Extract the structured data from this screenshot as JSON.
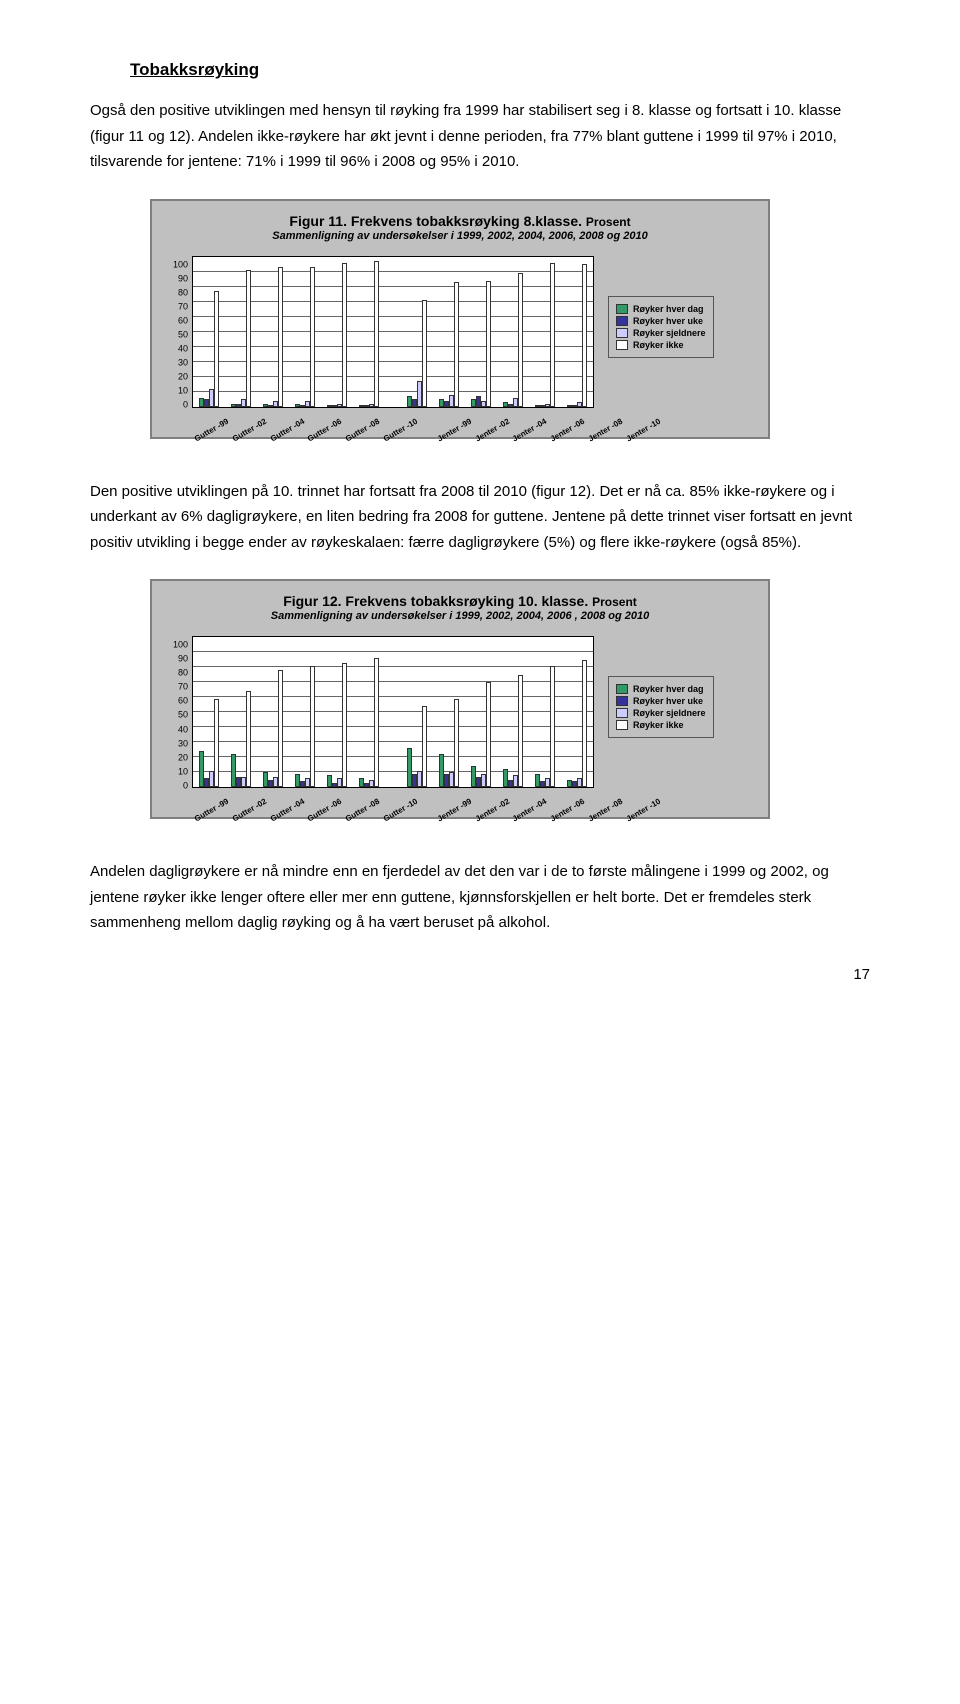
{
  "section_title": "Tobakksrøyking",
  "para1": "Også den positive utviklingen med hensyn til røyking fra 1999 har stabilisert seg i 8. klasse og fortsatt i 10. klasse (figur 11 og 12). Andelen ikke-røykere har økt jevnt i denne perioden, fra 77% blant guttene i 1999 til 97% i 2010, tilsvarende for jentene: 71% i 1999 til 96% i 2008 og 95% i 2010.",
  "para2": "Den positive utviklingen på 10. trinnet har fortsatt fra 2008 til 2010 (figur 12). Det er nå ca. 85% ikke-røykere og i underkant av 6% dagligrøykere, en liten bedring fra 2008 for guttene. Jentene på dette trinnet viser fortsatt en jevnt positiv utvikling i begge ender av røykeskalaen: færre dagligrøykere (5%) og flere ikke-røykere (også 85%).",
  "para3": "Andelen dagligrøykere er nå mindre enn en fjerdedel av det den var i de to første målingene i 1999 og 2002, og jentene røyker ikke lenger oftere eller mer enn guttene, kjønnsforskjellen er helt borte. Det er fremdeles sterk sammenheng mellom daglig røyking og å ha vært beruset på alkohol.",
  "page_number": "17",
  "legend": {
    "items": [
      {
        "label": "Røyker hver dag",
        "color": "#339966"
      },
      {
        "label": "Røyker hver uke",
        "color": "#333399"
      },
      {
        "label": "Røyker sjeldnere",
        "color": "#ccccff"
      },
      {
        "label": "Røyker ikke",
        "color": "#ffffff"
      }
    ]
  },
  "axis": {
    "ymin": 0,
    "ymax": 100,
    "ystep": 10,
    "categories": [
      "Gutter -99",
      "Gutter -02",
      "Gutter -04",
      "Gutter -06",
      "Gutter -08",
      "Gutter -10",
      "Jenter -99",
      "Jenter -02",
      "Jenter -04",
      "Jenter -06",
      "Jenter -08",
      "Jenter -10"
    ]
  },
  "fig11": {
    "title_a": "Figur 11. Frekvens tobakksrøyking 8.klasse.",
    "title_b": "Prosent",
    "subtitle": "Sammenligning av undersøkelser i 1999, 2002, 2004, 2006, 2008 og 2010",
    "data": [
      {
        "dag": 6,
        "uke": 5,
        "sj": 12,
        "ikke": 77
      },
      {
        "dag": 2,
        "uke": 2,
        "sj": 5,
        "ikke": 91
      },
      {
        "dag": 2,
        "uke": 1,
        "sj": 4,
        "ikke": 93
      },
      {
        "dag": 2,
        "uke": 1,
        "sj": 4,
        "ikke": 93
      },
      {
        "dag": 1,
        "uke": 1,
        "sj": 2,
        "ikke": 96
      },
      {
        "dag": 1,
        "uke": 0,
        "sj": 2,
        "ikke": 97
      },
      {
        "dag": 7,
        "uke": 5,
        "sj": 17,
        "ikke": 71
      },
      {
        "dag": 5,
        "uke": 4,
        "sj": 8,
        "ikke": 83
      },
      {
        "dag": 5,
        "uke": 7,
        "sj": 4,
        "ikke": 84
      },
      {
        "dag": 3,
        "uke": 2,
        "sj": 6,
        "ikke": 89
      },
      {
        "dag": 1,
        "uke": 1,
        "sj": 2,
        "ikke": 96
      },
      {
        "dag": 1,
        "uke": 1,
        "sj": 3,
        "ikke": 95
      }
    ]
  },
  "fig12": {
    "title_a": "Figur 12.  Frekvens tobakksrøyking 10. klasse.",
    "title_b": "Prosent",
    "subtitle": "Sammenligning av undersøkelser i 1999, 2002, 2004, 2006 , 2008 og 2010",
    "data": [
      {
        "dag": 24,
        "uke": 6,
        "sj": 11,
        "ikke": 59
      },
      {
        "dag": 22,
        "uke": 7,
        "sj": 7,
        "ikke": 64
      },
      {
        "dag": 10,
        "uke": 5,
        "sj": 7,
        "ikke": 78
      },
      {
        "dag": 9,
        "uke": 4,
        "sj": 6,
        "ikke": 81
      },
      {
        "dag": 8,
        "uke": 3,
        "sj": 6,
        "ikke": 83
      },
      {
        "dag": 6,
        "uke": 3,
        "sj": 5,
        "ikke": 86
      },
      {
        "dag": 26,
        "uke": 9,
        "sj": 11,
        "ikke": 54
      },
      {
        "dag": 22,
        "uke": 9,
        "sj": 10,
        "ikke": 59
      },
      {
        "dag": 14,
        "uke": 7,
        "sj": 9,
        "ikke": 70
      },
      {
        "dag": 12,
        "uke": 5,
        "sj": 8,
        "ikke": 75
      },
      {
        "dag": 9,
        "uke": 4,
        "sj": 6,
        "ikke": 81
      },
      {
        "dag": 5,
        "uke": 4,
        "sj": 6,
        "ikke": 85
      }
    ]
  },
  "colors": {
    "chart_bg": "#c0c0c0",
    "plot_bg": "#ffffff",
    "grid": "#000000",
    "border": "#7f7f7f"
  }
}
